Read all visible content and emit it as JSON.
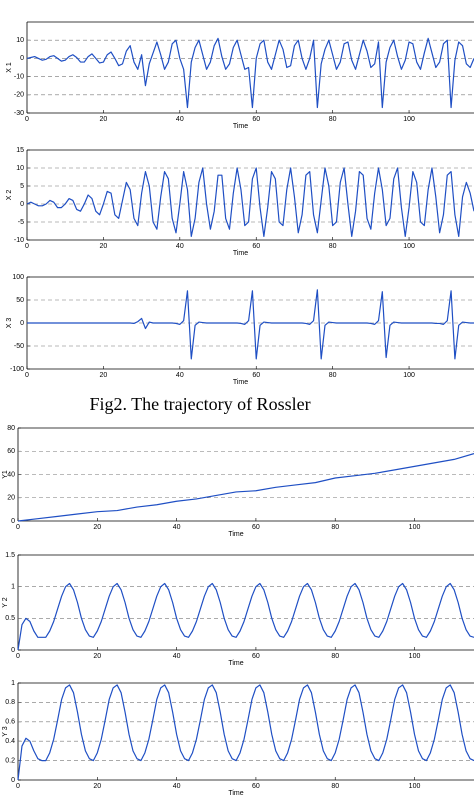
{
  "caption": "Fig2. The trajectory of Rossler",
  "chart_data": [
    {
      "type": "line",
      "y_label": "X 1",
      "x_label": "Time",
      "color": "#1f4fc4",
      "grid": true,
      "xlim": [
        0,
        117
      ],
      "ylim": [
        -30,
        20
      ],
      "xticks": [
        0,
        20,
        40,
        60,
        80,
        100
      ],
      "yticks": [
        -30,
        -20,
        -10,
        0,
        10
      ],
      "x": [
        0,
        1,
        2,
        3,
        4,
        5,
        6,
        7,
        8,
        9,
        10,
        11,
        12,
        13,
        14,
        15,
        16,
        17,
        18,
        19,
        20,
        21,
        22,
        23,
        24,
        25,
        26,
        27,
        28,
        29,
        30,
        31,
        32,
        33,
        34,
        35,
        36,
        37,
        38,
        39,
        40,
        41,
        42,
        43,
        44,
        45,
        46,
        47,
        48,
        49,
        50,
        51,
        52,
        53,
        54,
        55,
        56,
        57,
        58,
        59,
        60,
        61,
        62,
        63,
        64,
        65,
        66,
        67,
        68,
        69,
        70,
        71,
        72,
        73,
        74,
        75,
        76,
        77,
        78,
        79,
        80,
        81,
        82,
        83,
        84,
        85,
        86,
        87,
        88,
        89,
        90,
        91,
        92,
        93,
        94,
        95,
        96,
        97,
        98,
        99,
        100,
        101,
        102,
        103,
        104,
        105,
        106,
        107,
        108,
        109,
        110,
        111,
        112,
        113,
        114,
        115,
        116,
        117
      ],
      "values": [
        0,
        0.5,
        1,
        0,
        -1,
        -0.5,
        1,
        1.5,
        0,
        -1.5,
        -1,
        1,
        2,
        0.5,
        -2,
        -2,
        1,
        2.5,
        0,
        -2.5,
        -2,
        2,
        3.5,
        0,
        -4,
        -3,
        4,
        7,
        -2,
        -6,
        2,
        -15,
        -3,
        3,
        9,
        2,
        -6,
        -2,
        8,
        10,
        0,
        -6,
        -27,
        -2,
        6,
        10,
        2,
        -6,
        -2,
        7,
        11,
        1,
        -6,
        -3,
        6,
        10,
        2,
        -6,
        -5,
        -27,
        0,
        8,
        10,
        -2,
        -6,
        2,
        10,
        5,
        -5,
        -4,
        7,
        10,
        0,
        -6,
        0,
        10,
        -27,
        -3,
        5,
        10,
        2,
        -6,
        -2,
        8,
        9,
        -1,
        -6,
        2,
        10,
        4,
        -5,
        -3,
        9,
        -27,
        -2,
        6,
        10,
        1,
        -6,
        -1,
        9,
        8,
        -2,
        -6,
        3,
        11,
        3,
        -5,
        -2,
        8,
        10,
        -27,
        -1,
        9,
        7,
        -3,
        -5,
        0
      ]
    },
    {
      "type": "line",
      "y_label": "X 2",
      "x_label": "Time",
      "color": "#1f4fc4",
      "grid": true,
      "xlim": [
        0,
        117
      ],
      "ylim": [
        -10,
        15
      ],
      "xticks": [
        0,
        20,
        40,
        60,
        80,
        100
      ],
      "yticks": [
        -10,
        -5,
        0,
        5,
        10,
        15
      ],
      "x": [
        0,
        1,
        2,
        3,
        4,
        5,
        6,
        7,
        8,
        9,
        10,
        11,
        12,
        13,
        14,
        15,
        16,
        17,
        18,
        19,
        20,
        21,
        22,
        23,
        24,
        25,
        26,
        27,
        28,
        29,
        30,
        31,
        32,
        33,
        34,
        35,
        36,
        37,
        38,
        39,
        40,
        41,
        42,
        43,
        44,
        45,
        46,
        47,
        48,
        49,
        50,
        51,
        52,
        53,
        54,
        55,
        56,
        57,
        58,
        59,
        60,
        61,
        62,
        63,
        64,
        65,
        66,
        67,
        68,
        69,
        70,
        71,
        72,
        73,
        74,
        75,
        76,
        77,
        78,
        79,
        80,
        81,
        82,
        83,
        84,
        85,
        86,
        87,
        88,
        89,
        90,
        91,
        92,
        93,
        94,
        95,
        96,
        97,
        98,
        99,
        100,
        101,
        102,
        103,
        104,
        105,
        106,
        107,
        108,
        109,
        110,
        111,
        112,
        113,
        114,
        115,
        116,
        117
      ],
      "values": [
        0,
        0.5,
        0,
        -0.5,
        -0.5,
        0,
        1,
        0.5,
        -1,
        -1,
        0,
        1.5,
        1,
        -1.5,
        -2,
        0,
        2.5,
        1.5,
        -2,
        -3,
        0,
        3.5,
        3,
        -3,
        -4,
        1,
        6,
        4,
        -4,
        -6,
        3,
        9,
        5,
        -5,
        -7,
        2,
        9,
        7,
        -4,
        -8,
        0,
        9,
        4,
        -9,
        -4,
        6,
        10,
        0,
        -7,
        -2,
        8,
        8,
        -4,
        -7,
        3,
        10,
        4,
        -6,
        -5,
        7,
        10,
        -1,
        -9,
        -1,
        9,
        7,
        -5,
        -6,
        4,
        10,
        2,
        -8,
        -3,
        8,
        9,
        -3,
        -8,
        1,
        10,
        5,
        -6,
        -5,
        6,
        10,
        0,
        -9,
        -2,
        9,
        8,
        -4,
        -7,
        3,
        10,
        4,
        -6,
        -4,
        7,
        10,
        -1,
        -9,
        -1,
        9,
        6,
        -5,
        -6,
        4,
        10,
        2,
        -8,
        -3,
        8,
        9,
        -3,
        -9,
        2,
        6,
        3,
        -2
      ]
    },
    {
      "type": "line",
      "y_label": "X 3",
      "x_label": "Time",
      "color": "#1f4fc4",
      "grid": true,
      "xlim": [
        0,
        117
      ],
      "ylim": [
        -100,
        100
      ],
      "xticks": [
        0,
        20,
        40,
        60,
        80,
        100
      ],
      "yticks": [
        -100,
        -50,
        0,
        50,
        100
      ],
      "x": [
        0,
        1,
        2,
        3,
        4,
        5,
        6,
        7,
        8,
        9,
        10,
        11,
        12,
        13,
        14,
        15,
        16,
        17,
        18,
        19,
        20,
        21,
        22,
        23,
        24,
        25,
        26,
        27,
        28,
        29,
        30,
        31,
        32,
        33,
        34,
        35,
        36,
        37,
        38,
        39,
        40,
        41,
        42,
        43,
        44,
        45,
        46,
        47,
        48,
        49,
        50,
        51,
        52,
        53,
        54,
        55,
        56,
        57,
        58,
        59,
        60,
        61,
        62,
        63,
        64,
        65,
        66,
        67,
        68,
        69,
        70,
        71,
        72,
        73,
        74,
        75,
        76,
        77,
        78,
        79,
        80,
        81,
        82,
        83,
        84,
        85,
        86,
        87,
        88,
        89,
        90,
        91,
        92,
        93,
        94,
        95,
        96,
        97,
        98,
        99,
        100,
        101,
        102,
        103,
        104,
        105,
        106,
        107,
        108,
        109,
        110,
        111,
        112,
        113,
        114,
        115,
        116,
        117
      ],
      "values": [
        0,
        0,
        0,
        0,
        0,
        0,
        0,
        0,
        0,
        0,
        0,
        0,
        0,
        0,
        0,
        0,
        0,
        0,
        0,
        0,
        0,
        0,
        0,
        0,
        0,
        0,
        0,
        0,
        -1,
        3,
        10,
        -12,
        2,
        0,
        0,
        0,
        0,
        0,
        0,
        -1,
        -3,
        5,
        70,
        -78,
        -5,
        2,
        1,
        0,
        0,
        0,
        0,
        0,
        0,
        0,
        0,
        0,
        -1,
        -3,
        5,
        70,
        -78,
        -5,
        2,
        1,
        0,
        0,
        0,
        0,
        0,
        0,
        0,
        0,
        0,
        -1,
        -3,
        5,
        72,
        -78,
        -5,
        2,
        1,
        0,
        0,
        0,
        0,
        0,
        0,
        0,
        0,
        0,
        -1,
        -3,
        5,
        68,
        -75,
        -5,
        2,
        1,
        0,
        0,
        0,
        0,
        0,
        0,
        0,
        0,
        0,
        -1,
        -1,
        -3,
        5,
        70,
        -78,
        -5,
        2,
        1,
        0,
        0
      ]
    },
    {
      "type": "line",
      "y_label": "Y1",
      "x_label": "Time",
      "color": "#1f4fc4",
      "grid": true,
      "xlim": [
        0,
        115
      ],
      "ylim": [
        0,
        80
      ],
      "xticks": [
        0,
        20,
        40,
        60,
        80,
        100
      ],
      "yticks": [
        0,
        20,
        40,
        60,
        80
      ],
      "x": [
        0,
        5,
        10,
        15,
        20,
        25,
        30,
        35,
        40,
        45,
        50,
        55,
        60,
        65,
        70,
        75,
        80,
        85,
        90,
        95,
        100,
        105,
        110,
        115
      ],
      "values": [
        0,
        2,
        4,
        6,
        8,
        9,
        12,
        14,
        17,
        19,
        22,
        25,
        26,
        29,
        31,
        33,
        37,
        39,
        41,
        44,
        47,
        50,
        53,
        58
      ]
    },
    {
      "type": "line",
      "y_label": "Y 2",
      "x_label": "Time",
      "color": "#1f4fc4",
      "grid": true,
      "xlim": [
        0,
        115
      ],
      "ylim": [
        0,
        1.5
      ],
      "xticks": [
        0,
        20,
        40,
        60,
        80,
        100
      ],
      "yticks": [
        0,
        0.5,
        1,
        1.5
      ],
      "x": [
        0,
        1,
        2,
        3,
        4,
        5,
        6,
        7,
        8,
        9,
        10,
        11,
        12,
        13,
        14,
        15,
        16,
        17,
        18,
        19,
        20,
        21,
        22,
        23,
        24,
        25,
        26,
        27,
        28,
        29,
        30,
        31,
        32,
        33,
        34,
        35,
        36,
        37,
        38,
        39,
        40,
        41,
        42,
        43,
        44,
        45,
        46,
        47,
        48,
        49,
        50,
        51,
        52,
        53,
        54,
        55,
        56,
        57,
        58,
        59,
        60,
        61,
        62,
        63,
        64,
        65,
        66,
        67,
        68,
        69,
        70,
        71,
        72,
        73,
        74,
        75,
        76,
        77,
        78,
        79,
        80,
        81,
        82,
        83,
        84,
        85,
        86,
        87,
        88,
        89,
        90,
        91,
        92,
        93,
        94,
        95,
        96,
        97,
        98,
        99,
        100,
        101,
        102,
        103,
        104,
        105,
        106,
        107,
        108,
        109,
        110,
        111,
        112,
        113,
        114,
        115
      ],
      "values": [
        0,
        0.4,
        0.5,
        0.45,
        0.3,
        0.2,
        0.2,
        0.2,
        0.3,
        0.45,
        0.65,
        0.85,
        1,
        1.05,
        0.95,
        0.75,
        0.5,
        0.32,
        0.22,
        0.2,
        0.3,
        0.45,
        0.65,
        0.85,
        1,
        1.05,
        0.95,
        0.75,
        0.5,
        0.32,
        0.22,
        0.2,
        0.3,
        0.45,
        0.65,
        0.85,
        1,
        1.05,
        0.95,
        0.75,
        0.5,
        0.32,
        0.22,
        0.2,
        0.3,
        0.45,
        0.65,
        0.85,
        1,
        1.05,
        0.95,
        0.75,
        0.5,
        0.32,
        0.22,
        0.2,
        0.3,
        0.45,
        0.65,
        0.85,
        1,
        1.05,
        0.95,
        0.75,
        0.5,
        0.32,
        0.22,
        0.2,
        0.3,
        0.45,
        0.65,
        0.85,
        1,
        1.05,
        0.95,
        0.75,
        0.5,
        0.32,
        0.22,
        0.2,
        0.3,
        0.45,
        0.65,
        0.85,
        1,
        1.05,
        0.95,
        0.75,
        0.5,
        0.32,
        0.22,
        0.2,
        0.3,
        0.45,
        0.65,
        0.85,
        1,
        1.05,
        0.95,
        0.75,
        0.5,
        0.32,
        0.22,
        0.2,
        0.3,
        0.45,
        0.65,
        0.85,
        1,
        1.05,
        0.95,
        0.75,
        0.5,
        0.32,
        0.22,
        0.2
      ]
    },
    {
      "type": "line",
      "y_label": "Y 3",
      "x_label": "Time",
      "color": "#1f4fc4",
      "grid": true,
      "xlim": [
        0,
        115
      ],
      "ylim": [
        0,
        1
      ],
      "xticks": [
        0,
        20,
        40,
        60,
        80,
        100
      ],
      "yticks": [
        0,
        0.2,
        0.4,
        0.6,
        0.8,
        1
      ],
      "x": [
        0,
        1,
        2,
        3,
        4,
        5,
        6,
        7,
        8,
        9,
        10,
        11,
        12,
        13,
        14,
        15,
        16,
        17,
        18,
        19,
        20,
        21,
        22,
        23,
        24,
        25,
        26,
        27,
        28,
        29,
        30,
        31,
        32,
        33,
        34,
        35,
        36,
        37,
        38,
        39,
        40,
        41,
        42,
        43,
        44,
        45,
        46,
        47,
        48,
        49,
        50,
        51,
        52,
        53,
        54,
        55,
        56,
        57,
        58,
        59,
        60,
        61,
        62,
        63,
        64,
        65,
        66,
        67,
        68,
        69,
        70,
        71,
        72,
        73,
        74,
        75,
        76,
        77,
        78,
        79,
        80,
        81,
        82,
        83,
        84,
        85,
        86,
        87,
        88,
        89,
        90,
        91,
        92,
        93,
        94,
        95,
        96,
        97,
        98,
        99,
        100,
        101,
        102,
        103,
        104,
        105,
        106,
        107,
        108,
        109,
        110,
        111,
        112,
        113,
        114,
        115
      ],
      "values": [
        0,
        0.35,
        0.43,
        0.4,
        0.3,
        0.22,
        0.2,
        0.2,
        0.28,
        0.42,
        0.62,
        0.83,
        0.95,
        0.98,
        0.9,
        0.7,
        0.47,
        0.3,
        0.22,
        0.2,
        0.28,
        0.42,
        0.62,
        0.83,
        0.95,
        0.98,
        0.9,
        0.7,
        0.47,
        0.3,
        0.22,
        0.2,
        0.28,
        0.42,
        0.62,
        0.83,
        0.95,
        0.98,
        0.9,
        0.7,
        0.47,
        0.3,
        0.22,
        0.2,
        0.28,
        0.42,
        0.62,
        0.83,
        0.95,
        0.98,
        0.9,
        0.7,
        0.47,
        0.3,
        0.22,
        0.2,
        0.28,
        0.42,
        0.62,
        0.83,
        0.95,
        0.98,
        0.9,
        0.7,
        0.47,
        0.3,
        0.22,
        0.2,
        0.28,
        0.42,
        0.62,
        0.83,
        0.95,
        0.98,
        0.9,
        0.7,
        0.47,
        0.3,
        0.22,
        0.2,
        0.28,
        0.42,
        0.62,
        0.83,
        0.95,
        0.98,
        0.9,
        0.7,
        0.47,
        0.3,
        0.22,
        0.2,
        0.28,
        0.42,
        0.62,
        0.83,
        0.95,
        0.98,
        0.9,
        0.7,
        0.47,
        0.3,
        0.22,
        0.2,
        0.28,
        0.42,
        0.62,
        0.83,
        0.95,
        0.98,
        0.9,
        0.7,
        0.47,
        0.3,
        0.22,
        0.2
      ]
    }
  ]
}
